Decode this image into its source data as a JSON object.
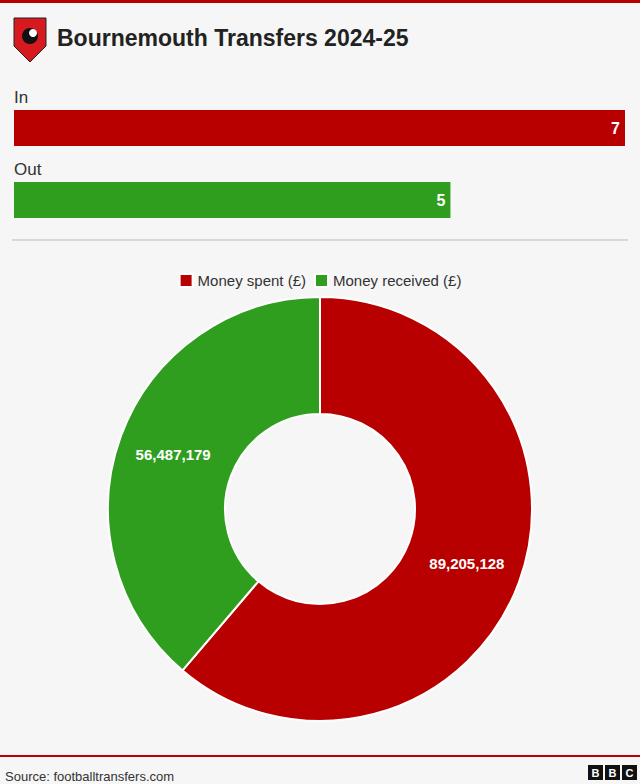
{
  "title": "Bournemouth Transfers 2024-25",
  "source": "Source: footballtransfers.com",
  "logo": "BBC",
  "chart_data": [
    {
      "type": "bar",
      "orientation": "horizontal",
      "categories": [
        "In",
        "Out"
      ],
      "values": [
        7,
        5
      ],
      "colors": [
        "#b80000",
        "#2f9e1f"
      ],
      "xlim": [
        0,
        7
      ],
      "data_labels": true,
      "tick_labels": "y",
      "grid": false
    },
    {
      "type": "pie",
      "categories": [
        "Money spent (£)",
        "Money received (£)"
      ],
      "values": [
        89205128,
        56487179
      ],
      "value_labels": [
        "89,205,128",
        "56,487,179"
      ],
      "colors": [
        "#b80000",
        "#2f9e1f"
      ],
      "data_labels": true,
      "legend": "top"
    }
  ]
}
